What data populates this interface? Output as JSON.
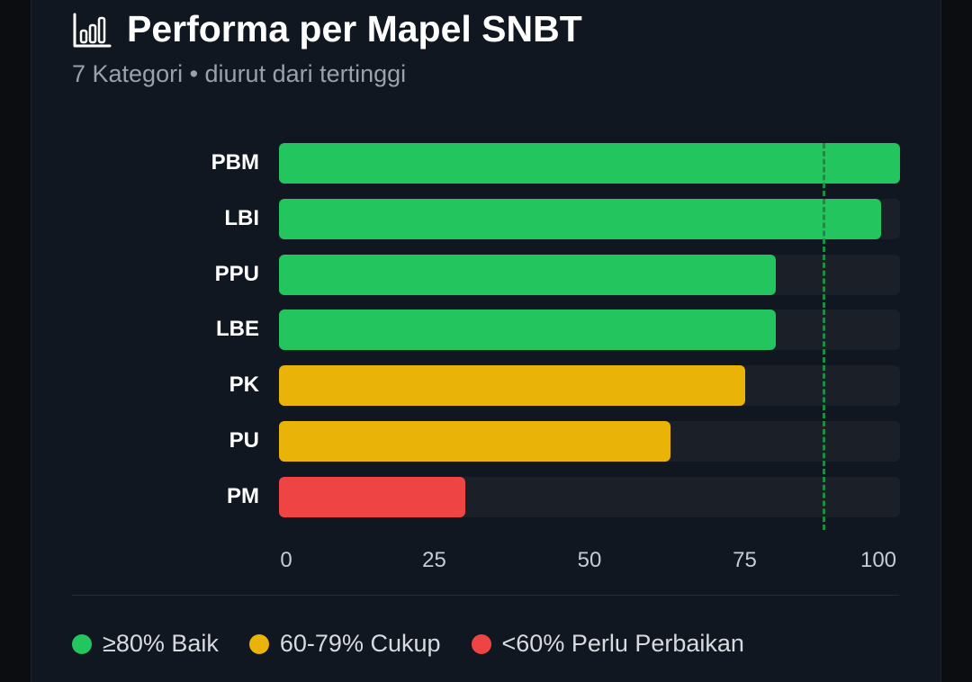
{
  "header": {
    "icon": "bar-chart-icon",
    "title": "Performa per Mapel SNBT",
    "subtitle": "7 Kategori • diurut dari tertinggi"
  },
  "colors": {
    "good": "#22c55e",
    "fair": "#eab308",
    "poor": "#ef4444",
    "track": "#1b2028",
    "target_line": "#1f8a44"
  },
  "chart_data": {
    "type": "bar",
    "orientation": "horizontal",
    "categories": [
      "PBM",
      "LBI",
      "PPU",
      "LBE",
      "PK",
      "PU",
      "PM"
    ],
    "values": [
      100,
      97,
      80,
      80,
      75,
      63,
      30
    ],
    "status": [
      "good",
      "good",
      "good",
      "good",
      "fair",
      "fair",
      "poor"
    ],
    "xlim": [
      0,
      100
    ],
    "xticks": [
      "0",
      "25",
      "50",
      "75",
      "100"
    ],
    "target_value": 80,
    "grid": false
  },
  "legend": [
    {
      "label": "≥80% Baik",
      "color": "#22c55e"
    },
    {
      "label": "60-79% Cukup",
      "color": "#eab308"
    },
    {
      "label": "<60% Perlu Perbaikan",
      "color": "#ef4444"
    }
  ]
}
